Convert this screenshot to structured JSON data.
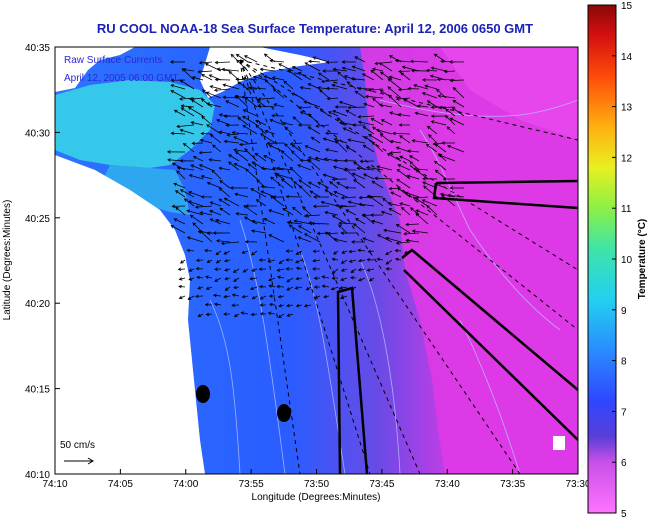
{
  "title": "RU COOL  NOAA-18  Sea Surface Temperature:  April 12, 2006 0650 GMT",
  "overlay": {
    "line1": "Raw Surface Currents",
    "line2": "April 12, 2005 06:00 GMT"
  },
  "axes": {
    "xlabel": "Longitude (Degrees:Minutes)",
    "ylabel": "Latitude (Degrees:Minutes)",
    "x_ticks": [
      "74:10",
      "74:05",
      "74:00",
      "73:55",
      "73:50",
      "73:45",
      "73:40",
      "73:35",
      "73:30"
    ],
    "y_ticks": [
      "40:35",
      "40:30",
      "40:25",
      "40:20",
      "40:15",
      "40:10"
    ]
  },
  "scale_label": "50 cm/s",
  "colorbar": {
    "label": "Temperature (°C)",
    "ticks": [
      "15",
      "14",
      "13",
      "12",
      "11",
      "10",
      "9",
      "8",
      "7",
      "6",
      "5"
    ],
    "range": [
      5,
      15
    ]
  },
  "colors": {
    "land": "#ffffff",
    "warm_water": "#e238e8",
    "cold_water": "#2a6cff",
    "nearshore": "#36c8ea"
  }
}
